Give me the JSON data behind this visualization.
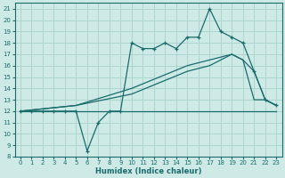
{
  "xlabel": "Humidex (Indice chaleur)",
  "bg_color": "#ceeae6",
  "grid_color": "#aed4d0",
  "line_color": "#1a6b6b",
  "xlim": [
    -0.5,
    23.5
  ],
  "ylim": [
    8,
    21.5
  ],
  "xticks": [
    0,
    1,
    2,
    3,
    4,
    5,
    6,
    7,
    8,
    9,
    10,
    11,
    12,
    13,
    14,
    15,
    16,
    17,
    18,
    19,
    20,
    21,
    22,
    23
  ],
  "yticks": [
    8,
    9,
    10,
    11,
    12,
    13,
    14,
    15,
    16,
    17,
    18,
    19,
    20,
    21
  ],
  "series_zigzag_x": [
    0,
    1,
    2,
    3,
    4,
    5,
    6,
    7,
    8,
    9,
    10,
    11,
    12,
    13,
    14,
    15,
    16,
    17,
    18,
    19,
    20,
    21,
    22,
    23
  ],
  "series_zigzag_y": [
    12,
    12,
    12,
    12,
    12,
    12,
    8.5,
    11,
    12,
    12,
    18,
    17.5,
    17.5,
    18,
    17.5,
    18.5,
    18.5,
    21,
    19,
    18.5,
    18,
    15.5,
    13,
    12.5
  ],
  "series_flat_x": [
    0,
    1,
    2,
    3,
    4,
    5,
    6,
    7,
    8,
    9,
    10,
    11,
    12,
    13,
    14,
    15,
    16,
    17,
    18,
    19,
    20,
    21,
    22,
    23
  ],
  "series_flat_y": [
    12,
    12,
    12,
    12,
    12,
    12,
    12,
    12,
    12,
    12,
    12,
    12,
    12,
    12,
    12,
    12,
    12,
    12,
    12,
    12,
    12,
    12,
    12,
    12
  ],
  "series_diag1_x": [
    0,
    5,
    10,
    15,
    19,
    20,
    21,
    22,
    23
  ],
  "series_diag1_y": [
    12,
    12.5,
    14,
    16,
    17,
    16.5,
    13,
    13,
    12.5
  ],
  "series_diag2_x": [
    0,
    5,
    10,
    15,
    17,
    19,
    20,
    21,
    22,
    23
  ],
  "series_diag2_y": [
    12,
    12.5,
    13.5,
    15.5,
    16,
    17,
    16.5,
    15.5,
    13,
    12.5
  ]
}
